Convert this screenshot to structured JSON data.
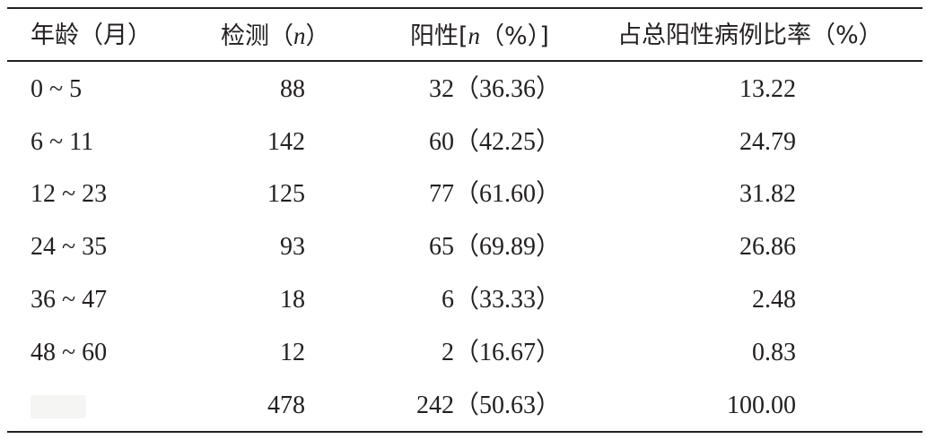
{
  "table": {
    "headers": {
      "age": "年龄（月）",
      "tested_prefix": "检测（",
      "tested_var": "n",
      "tested_suffix": "）",
      "positive_prefix": "阳性[",
      "positive_var": "n",
      "positive_suffix": "（%）]",
      "ratio": "占总阳性病例比率（%）"
    },
    "rows": [
      {
        "age": "0 ~ 5",
        "tested": "88",
        "positive": "32（36.36）",
        "ratio": "13.22"
      },
      {
        "age": "6 ~ 11",
        "tested": "142",
        "positive": "60（42.25）",
        "ratio": "24.79"
      },
      {
        "age": "12 ~ 23",
        "tested": "125",
        "positive": "77（61.60）",
        "ratio": "31.82"
      },
      {
        "age": "24 ~ 35",
        "tested": "93",
        "positive": "65（69.89）",
        "ratio": "26.86"
      },
      {
        "age": "36 ~ 47",
        "tested": "18",
        "positive": "6（33.33）",
        "ratio": "2.48"
      },
      {
        "age": "48 ~ 60",
        "tested": "12",
        "positive": "2（16.67）",
        "ratio": "0.83"
      }
    ],
    "total": {
      "tested": "478",
      "positive": "242（50.63）",
      "ratio": "100.00"
    }
  }
}
